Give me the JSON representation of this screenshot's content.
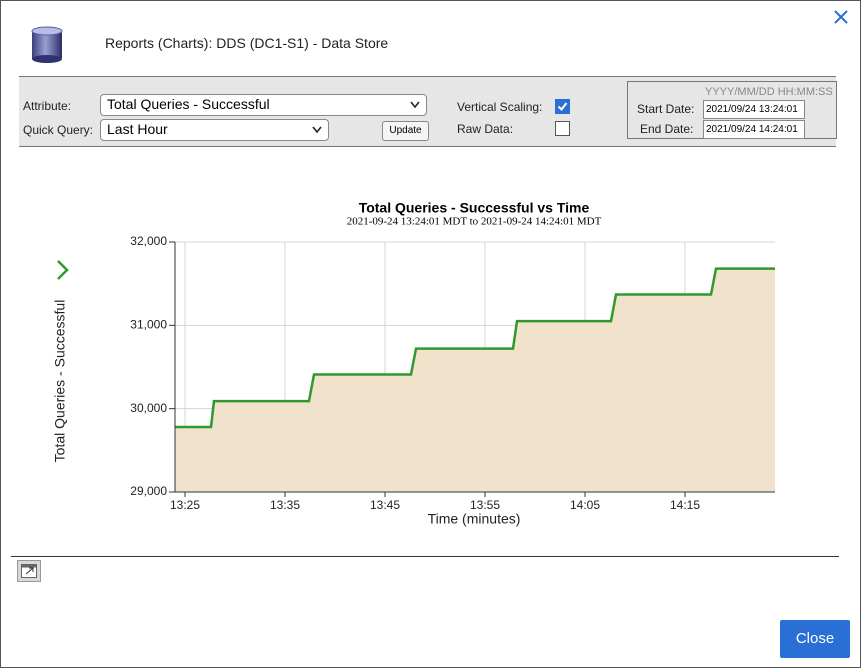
{
  "header": {
    "title": "Reports (Charts): DDS (DC1-S1) - Data Store"
  },
  "controls": {
    "attribute_label": "Attribute:",
    "attribute_value": "Total Queries - Successful",
    "quick_query_label": "Quick Query:",
    "quick_query_value": "Last Hour",
    "update_button": "Update",
    "vertical_scaling_label": "Vertical Scaling:",
    "vertical_scaling_checked": true,
    "raw_data_label": "Raw Data:",
    "raw_data_checked": false,
    "date_format": "YYYY/MM/DD HH:MM:SS",
    "start_date_label": "Start Date:",
    "start_date": "2021/09/24 13:24:01",
    "end_date_label": "End Date:",
    "end_date": "2021/09/24 14:24:01"
  },
  "chart_data": {
    "type": "area",
    "title": "Total Queries - Successful vs Time",
    "subtitle": "2021-09-24 13:24:01 MDT to 2021-09-24 14:24:01 MDT",
    "x_label": "Time (minutes)",
    "y_label": "Total Queries - Successful",
    "x": [
      0,
      3.6,
      3.9,
      13.4,
      13.9,
      23.6,
      24.1,
      33.8,
      34.2,
      43.6,
      44.1,
      53.6,
      54.1,
      60
    ],
    "series": [
      {
        "name": "Total Queries - Successful",
        "color": "#2e9a2e",
        "values": [
          29780,
          29780,
          30090,
          30090,
          30410,
          30410,
          30720,
          30720,
          31050,
          31050,
          31370,
          31370,
          31680,
          31680
        ]
      }
    ],
    "area_color": "#f1e2cc",
    "xlim": [
      0,
      60
    ],
    "xticks": [
      {
        "value": 1,
        "label": "13:25"
      },
      {
        "value": 11,
        "label": "13:35"
      },
      {
        "value": 21,
        "label": "13:45"
      },
      {
        "value": 31,
        "label": "13:55"
      },
      {
        "value": 41,
        "label": "14:05"
      },
      {
        "value": 51,
        "label": "14:15"
      }
    ],
    "ylim": [
      29000,
      32000
    ],
    "yticks": [
      {
        "value": 29000,
        "label": "29,000"
      },
      {
        "value": 30000,
        "label": "30,000"
      },
      {
        "value": 31000,
        "label": "31,000"
      },
      {
        "value": 32000,
        "label": "32,000"
      }
    ],
    "grid": true
  },
  "footer": {
    "close_button": "Close"
  }
}
